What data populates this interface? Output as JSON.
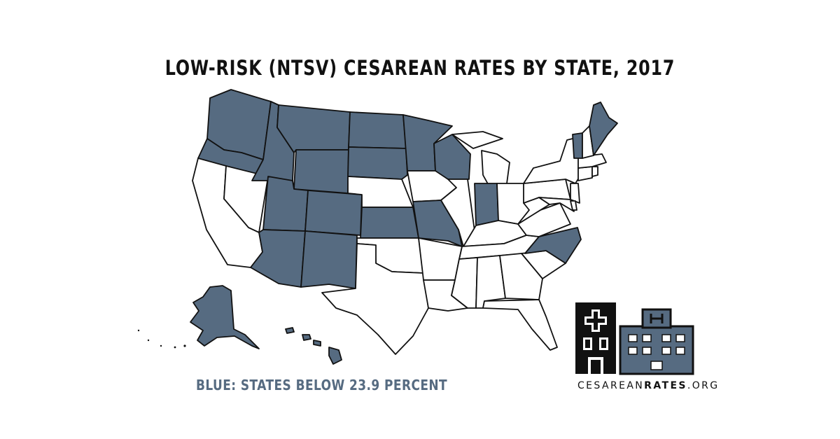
{
  "title": "LOW-RISK (NTSV) CESAREAN RATES BY STATE, 2017",
  "legend": {
    "text": "BLUE: STATES BELOW 23.9 PERCENT"
  },
  "site": {
    "part1": "CESAREAN",
    "part2": "RATES",
    "part3": ".ORG"
  },
  "colors": {
    "highlight": "#566b81",
    "outline": "#111111",
    "base": "#ffffff",
    "legend_text": "#566b81"
  },
  "map_data": {
    "states_below_threshold": [
      "WA",
      "OR",
      "ID",
      "MT",
      "WY",
      "ND",
      "SD",
      "MN",
      "WI",
      "UT",
      "CO",
      "AZ",
      "NM",
      "KS",
      "MO",
      "IN",
      "NC",
      "VT",
      "ME",
      "AK",
      "HI"
    ],
    "logo_icons": [
      "clinic-building-icon",
      "hospital-building-icon"
    ]
  }
}
